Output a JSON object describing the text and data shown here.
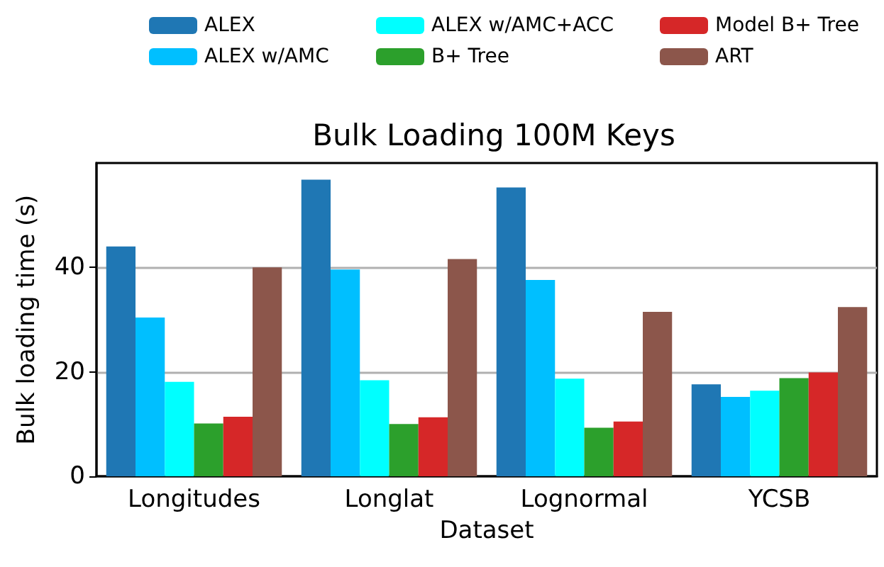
{
  "chart_data": {
    "type": "bar",
    "title": "Bulk Loading 100M Keys",
    "xlabel": "Dataset",
    "ylabel": "Bulk loading time (s)",
    "categories": [
      "Longitudes",
      "Longlat",
      "Lognormal",
      "YCSB"
    ],
    "series": [
      {
        "name": "ALEX",
        "color": "#1f77b4",
        "values": [
          44,
          56.8,
          55.3,
          17.6
        ]
      },
      {
        "name": "ALEX w/AMC",
        "color": "#00bfff",
        "values": [
          30.4,
          39.6,
          37.6,
          15.2
        ]
      },
      {
        "name": "ALEX w/AMC+ACC",
        "color": "#00ffff",
        "values": [
          18.1,
          18.4,
          18.7,
          16.4
        ]
      },
      {
        "name": "B+ Tree",
        "color": "#2ca02c",
        "values": [
          10.1,
          10,
          9.3,
          18.8
        ]
      },
      {
        "name": "Model B+ Tree",
        "color": "#d62728",
        "values": [
          11.4,
          11.3,
          10.5,
          19.9
        ]
      },
      {
        "name": "ART",
        "color": "#8c564b",
        "values": [
          40,
          41.6,
          31.5,
          32.4
        ]
      }
    ],
    "ylim": [
      0,
      60
    ],
    "yticks": [
      0,
      20,
      40
    ],
    "grid": "y",
    "legend": "top"
  }
}
